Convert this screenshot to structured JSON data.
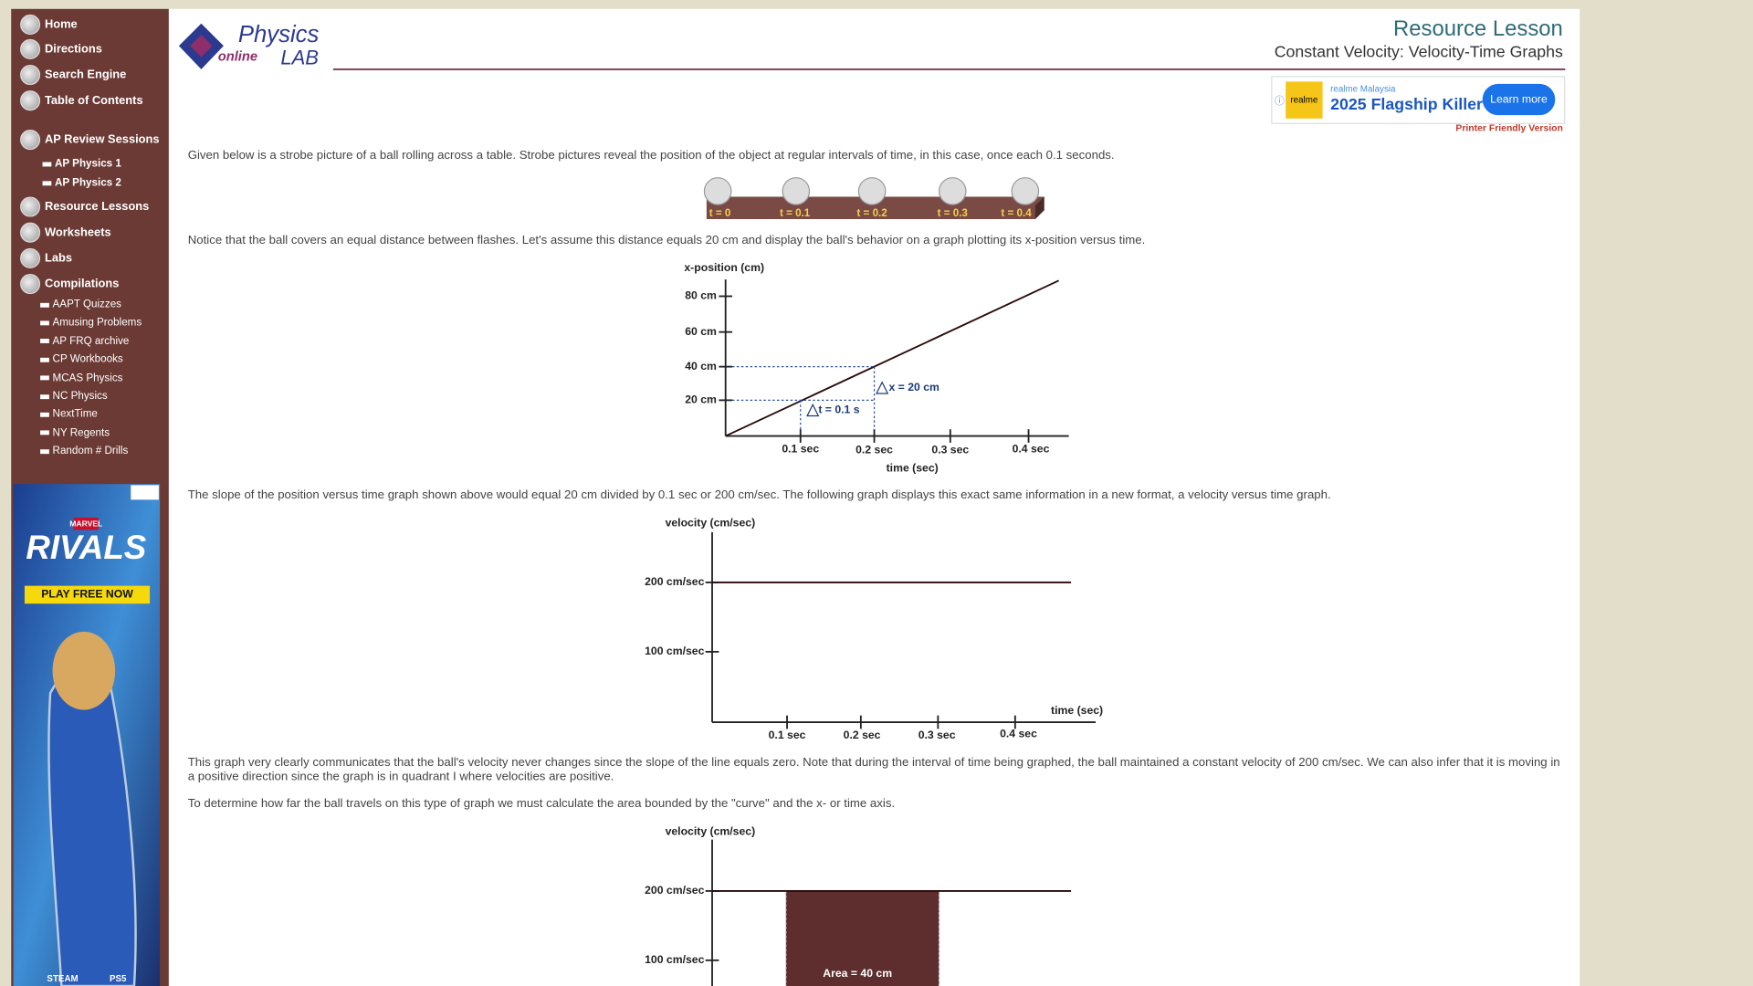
{
  "nav": {
    "top": [
      "Home",
      "Directions",
      "Search Engine",
      "Table of Contents"
    ],
    "ap_review": "AP Review Sessions",
    "ap_items": [
      "AP Physics 1",
      "AP Physics 2"
    ],
    "sections": [
      "Resource Lessons",
      "Worksheets",
      "Labs",
      "Compilations"
    ],
    "compilations": [
      "AAPT Quizzes",
      "Amusing Problems",
      "AP FRQ archive",
      "CP Workbooks",
      "MCAS Physics",
      "NC Physics",
      "NextTime",
      "NY Regents",
      "Random # Drills"
    ]
  },
  "side_ad": {
    "brand": "MARVEL",
    "title": "RIVALS",
    "cta": "PLAY FREE NOW",
    "platforms": [
      "STEAM",
      "PS5"
    ]
  },
  "logo": {
    "physics": "Physics",
    "online": "online",
    "lab": "LAB"
  },
  "header": {
    "title": "Resource Lesson",
    "subtitle": "Constant Velocity: Velocity-Time Graphs"
  },
  "top_ad": {
    "logo": "realme",
    "advertiser": "realme Malaysia",
    "headline": "2025 Flagship Killer",
    "button": "Learn more"
  },
  "printer_link": "Printer Friendly Version",
  "paragraphs": [
    "Given below is a strobe picture of a ball rolling across a table. Strobe pictures reveal the position of the object at regular intervals of time, in this case, once each 0.1 seconds.",
    "Notice that the ball covers an equal distance between flashes. Let's assume this distance equals 20 cm and display the ball's behavior on a graph plotting its x-position versus time.",
    "The slope of the position versus time graph shown above would equal 20 cm divided by 0.1 sec or 200 cm/sec. The following graph displays this exact same information in a new format, a velocity versus time graph.",
    "This graph very clearly communicates that the ball's velocity never changes since the slope of the line equals zero. Note that during the interval of time being graphed, the ball maintained a constant velocity of 200 cm/sec. We can also infer that it is moving in a positive direction since the graph is in quadrant I where velocities are positive.",
    "To determine how far the ball travels on this type of graph we must calculate the area bounded by the \"curve\" and the x- or time axis."
  ],
  "strobe": {
    "labels": [
      "t = 0",
      "t = 0.1",
      "t = 0.2",
      "t = 0.3",
      "t = 0.4"
    ]
  },
  "graph1": {
    "y_label": "x-position (cm)",
    "y_ticks": [
      "80 cm",
      "60 cm",
      "40 cm",
      "20 cm"
    ],
    "x_ticks": [
      "0.1 sec",
      "0.2 sec",
      "0.3 sec",
      "0.4 sec"
    ],
    "x_label": "time (sec)",
    "dx": "x = 20 cm",
    "dt": "t = 0.1 s"
  },
  "graph2": {
    "y_label": "velocity (cm/sec)",
    "y_ticks": [
      "200 cm/sec",
      "100 cm/sec"
    ],
    "x_ticks": [
      "0.1 sec",
      "0.2 sec",
      "0.3 sec",
      "0.4 sec"
    ],
    "x_label": "time (sec)"
  },
  "graph3": {
    "y_label": "velocity (cm/sec)",
    "y_ticks": [
      "200 cm/sec",
      "100 cm/sec"
    ],
    "area": "Area = 40 cm"
  }
}
